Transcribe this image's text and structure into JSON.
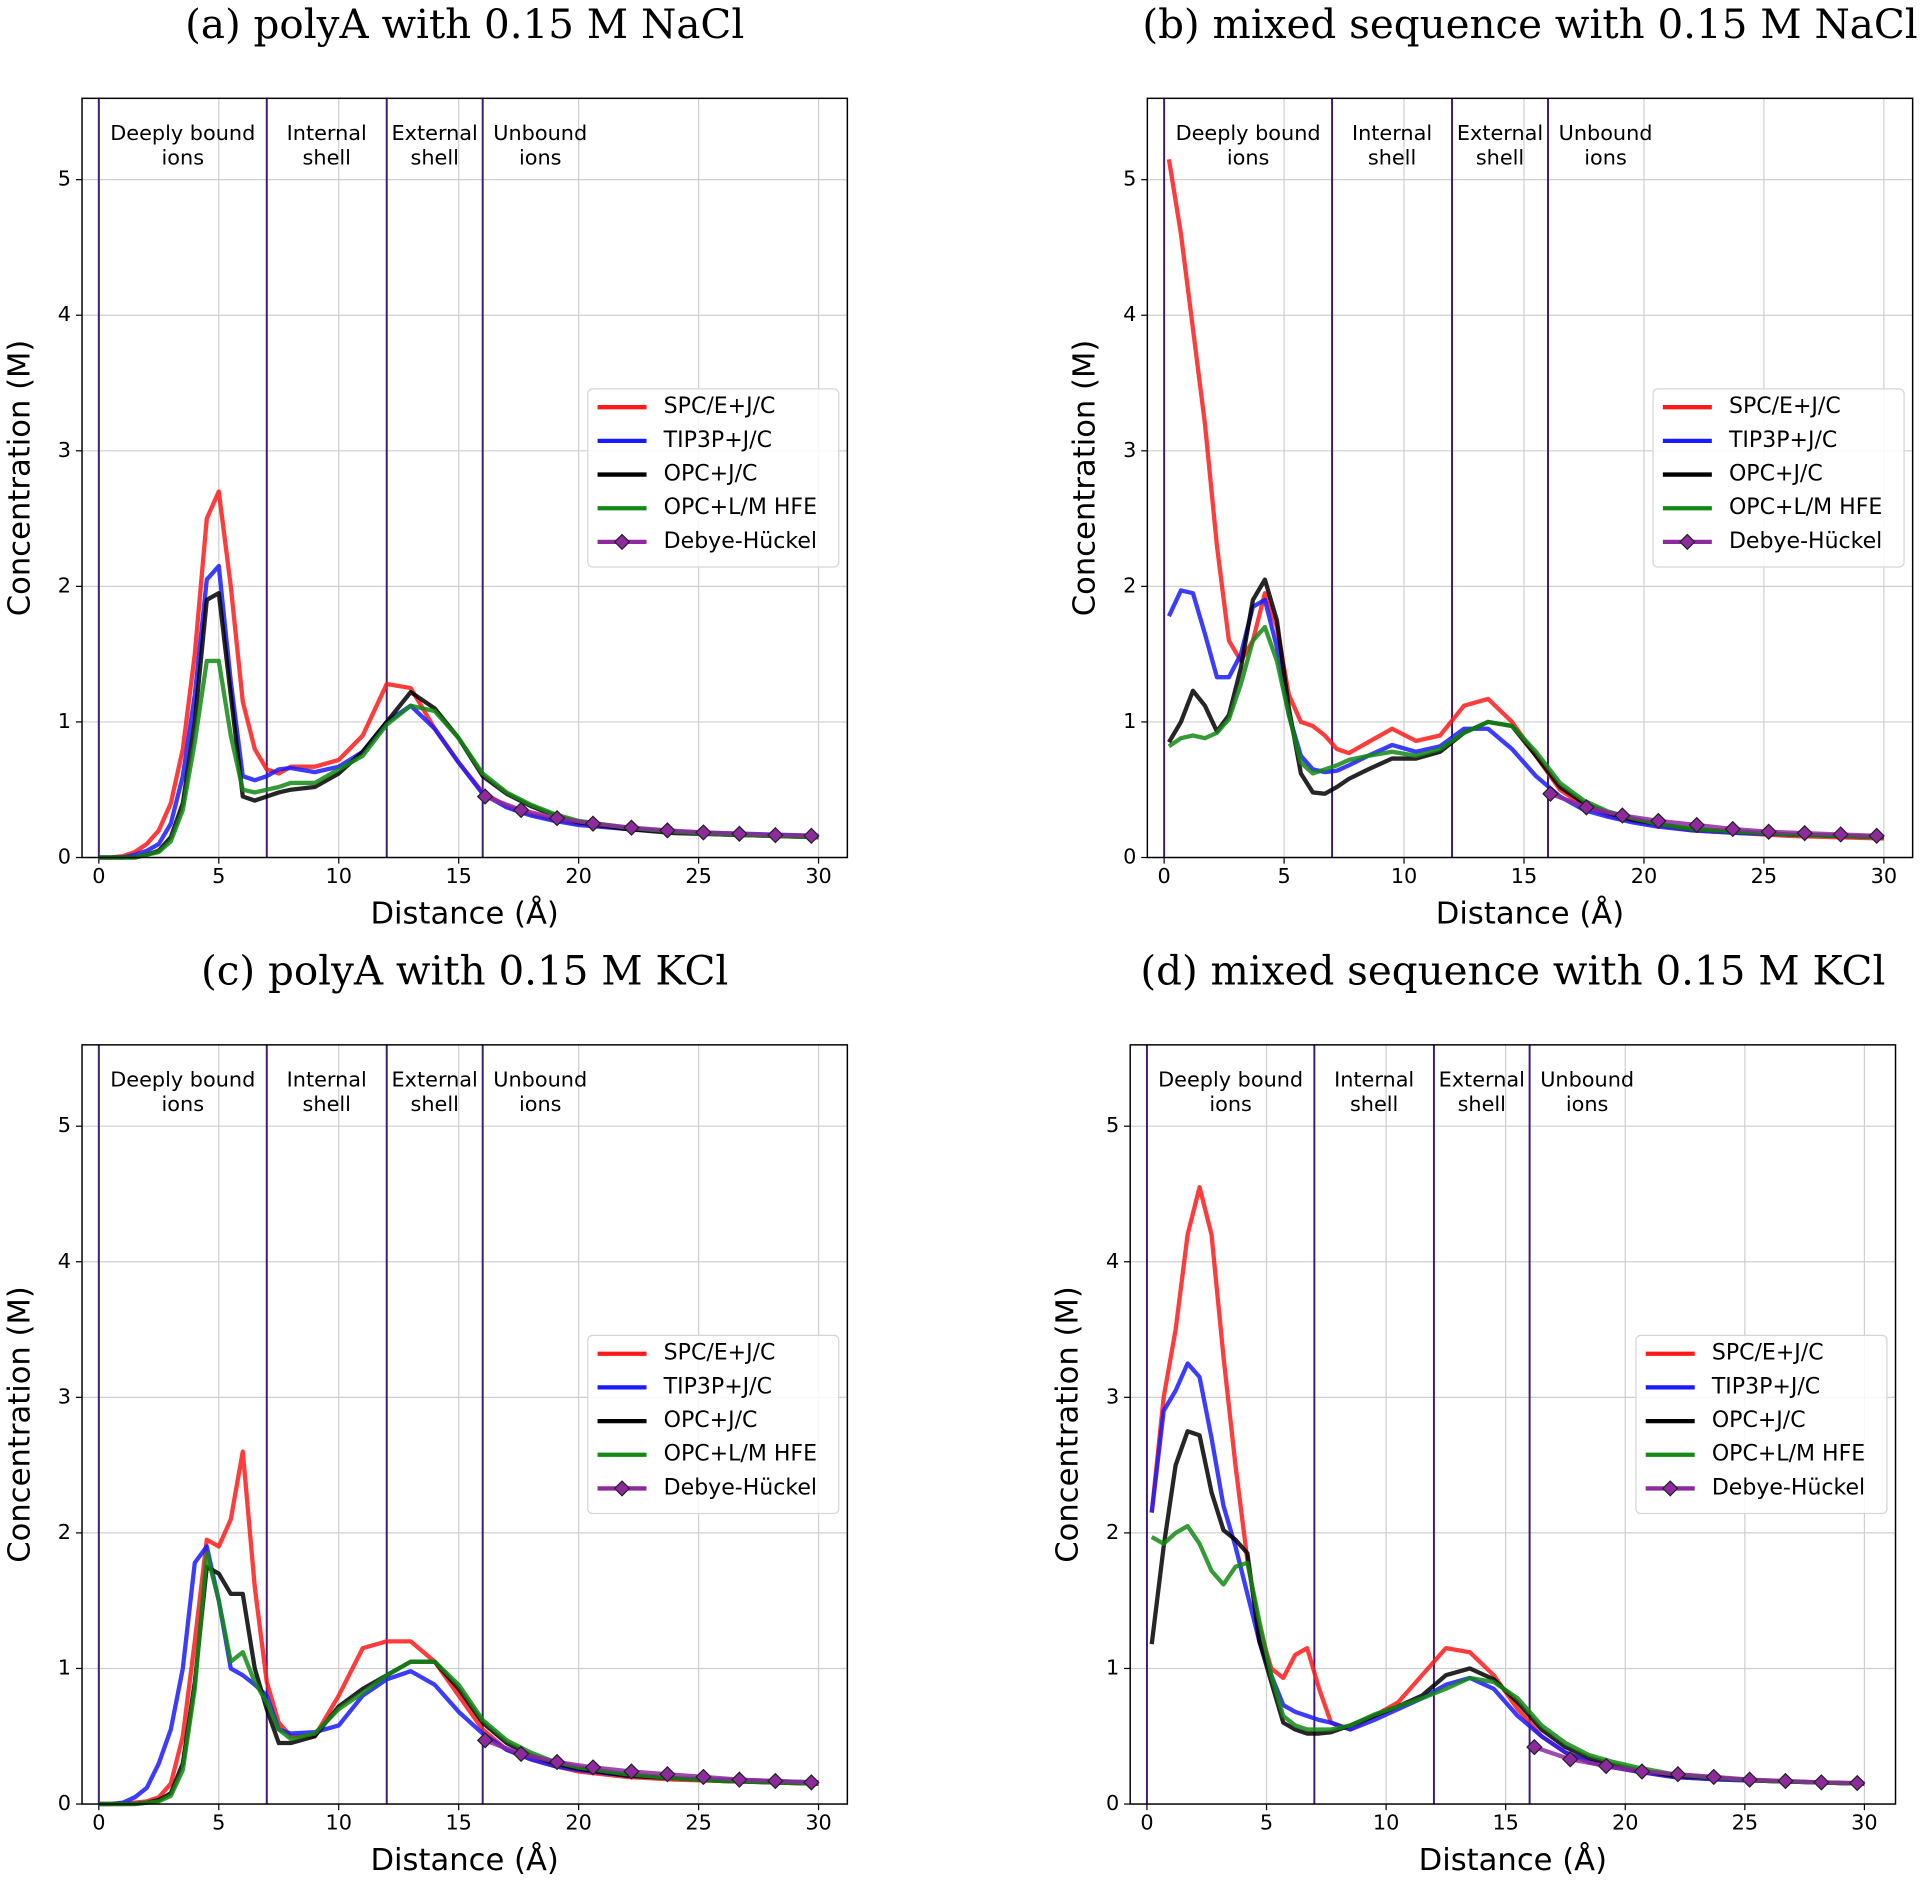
{
  "chart_data": [
    {
      "type": "line",
      "title": "(a) polyA with 0.15 M NaCl",
      "xlabel": "Distance (Å)",
      "ylabel": "Concentration (M)",
      "xlim": [
        -0.7,
        31.2
      ],
      "ylim": [
        0,
        5.6
      ],
      "xticks": [
        0,
        5,
        10,
        15,
        20,
        25,
        30
      ],
      "yticks": [
        0,
        1,
        2,
        3,
        4,
        5
      ],
      "grid": true,
      "legend": "center right",
      "boundaries": [
        0,
        7,
        12,
        16
      ],
      "boundary_color": "#3d1a78",
      "regions": [
        [
          "Deeply bound",
          "ions"
        ],
        [
          "Internal",
          "shell"
        ],
        [
          "External",
          "shell"
        ],
        [
          "Unbound",
          "ions"
        ]
      ],
      "x": [
        0,
        0.5,
        1,
        1.5,
        2,
        2.5,
        3,
        3.5,
        4,
        4.5,
        5,
        5.5,
        6,
        6.5,
        7,
        7.5,
        8,
        9,
        10,
        11,
        12,
        13,
        14,
        15,
        16,
        17,
        18,
        19,
        20,
        22,
        24,
        26,
        28,
        30
      ],
      "series": [
        {
          "name": "SPC/E+J/C",
          "color": "#ff1a1a",
          "values": [
            0,
            0,
            0.01,
            0.04,
            0.1,
            0.2,
            0.4,
            0.8,
            1.5,
            2.5,
            2.7,
            2.0,
            1.15,
            0.8,
            0.65,
            0.62,
            0.67,
            0.67,
            0.72,
            0.9,
            1.28,
            1.25,
            0.95,
            0.7,
            0.48,
            0.38,
            0.32,
            0.28,
            0.25,
            0.21,
            0.19,
            0.17,
            0.16,
            0.15
          ]
        },
        {
          "name": "TIP3P+J/C",
          "color": "#1a1aff",
          "values": [
            0,
            0,
            0,
            0.02,
            0.05,
            0.1,
            0.25,
            0.6,
            1.2,
            2.05,
            2.15,
            1.3,
            0.6,
            0.57,
            0.6,
            0.65,
            0.66,
            0.63,
            0.67,
            0.78,
            1.0,
            1.12,
            0.95,
            0.7,
            0.47,
            0.37,
            0.31,
            0.27,
            0.24,
            0.21,
            0.19,
            0.18,
            0.17,
            0.16
          ]
        },
        {
          "name": "OPC+J/C",
          "color": "#000000",
          "values": [
            0,
            0,
            0,
            0,
            0.02,
            0.05,
            0.15,
            0.4,
            1.0,
            1.9,
            1.95,
            1.2,
            0.45,
            0.42,
            0.45,
            0.48,
            0.5,
            0.52,
            0.62,
            0.78,
            1.0,
            1.22,
            1.1,
            0.88,
            0.6,
            0.47,
            0.38,
            0.31,
            0.26,
            0.21,
            0.18,
            0.17,
            0.16,
            0.15
          ]
        },
        {
          "name": "OPC+L/M HFE",
          "color": "#138a13",
          "values": [
            0,
            0,
            0,
            0,
            0.02,
            0.04,
            0.12,
            0.35,
            0.85,
            1.45,
            1.45,
            0.9,
            0.5,
            0.48,
            0.5,
            0.52,
            0.55,
            0.55,
            0.65,
            0.75,
            0.98,
            1.12,
            1.08,
            0.88,
            0.62,
            0.48,
            0.39,
            0.32,
            0.27,
            0.22,
            0.19,
            0.17,
            0.16,
            0.15
          ]
        },
        {
          "name": "Debye-Hückel",
          "color": "#8e2a9e",
          "marker": "diamond",
          "x": [
            16.1,
            17.6,
            19.1,
            20.6,
            22.2,
            23.7,
            25.2,
            26.7,
            28.2,
            29.7
          ],
          "values": [
            0.45,
            0.35,
            0.29,
            0.25,
            0.22,
            0.2,
            0.185,
            0.175,
            0.165,
            0.16
          ]
        }
      ]
    },
    {
      "type": "line",
      "title": "(b) mixed sequence with 0.15 M NaCl",
      "xlabel": "Distance (Å)",
      "ylabel": "Concentration (M)",
      "xlim": [
        -0.7,
        31.2
      ],
      "ylim": [
        0,
        5.6
      ],
      "xticks": [
        0,
        5,
        10,
        15,
        20,
        25,
        30
      ],
      "yticks": [
        0,
        1,
        2,
        3,
        4,
        5
      ],
      "grid": true,
      "legend": "center right",
      "boundaries": [
        0,
        7,
        12,
        16
      ],
      "boundary_color": "#3d1a78",
      "regions": [
        [
          "Deeply bound",
          "ions"
        ],
        [
          "Internal",
          "shell"
        ],
        [
          "External",
          "shell"
        ],
        [
          "Unbound",
          "ions"
        ]
      ],
      "x": [
        0.2,
        0.7,
        1.2,
        1.7,
        2.2,
        2.7,
        3.2,
        3.7,
        4.2,
        4.7,
        5.2,
        5.7,
        6.2,
        6.7,
        7.2,
        7.7,
        8.5,
        9.5,
        10.5,
        11.5,
        12.5,
        13.5,
        14.5,
        15.5,
        16.5,
        17.5,
        18.5,
        19.5,
        20.5,
        22,
        24,
        26,
        28,
        30
      ],
      "series": [
        {
          "name": "SPC/E+J/C",
          "color": "#ff1a1a",
          "values": [
            5.15,
            4.6,
            3.9,
            3.2,
            2.3,
            1.6,
            1.45,
            1.6,
            1.95,
            1.7,
            1.2,
            1.0,
            0.97,
            0.9,
            0.8,
            0.77,
            0.85,
            0.95,
            0.86,
            0.9,
            1.12,
            1.17,
            1.0,
            0.75,
            0.5,
            0.38,
            0.31,
            0.27,
            0.24,
            0.2,
            0.18,
            0.16,
            0.15,
            0.14
          ]
        },
        {
          "name": "TIP3P+J/C",
          "color": "#1a1aff",
          "values": [
            1.78,
            1.97,
            1.95,
            1.65,
            1.33,
            1.33,
            1.5,
            1.85,
            1.9,
            1.55,
            1.05,
            0.75,
            0.65,
            0.63,
            0.64,
            0.68,
            0.75,
            0.83,
            0.78,
            0.82,
            0.95,
            0.95,
            0.8,
            0.6,
            0.45,
            0.35,
            0.3,
            0.26,
            0.23,
            0.2,
            0.18,
            0.17,
            0.16,
            0.15
          ]
        },
        {
          "name": "OPC+J/C",
          "color": "#000000",
          "values": [
            0.85,
            1.0,
            1.23,
            1.12,
            0.93,
            1.05,
            1.4,
            1.9,
            2.05,
            1.75,
            1.1,
            0.62,
            0.48,
            0.47,
            0.52,
            0.58,
            0.65,
            0.73,
            0.73,
            0.78,
            0.92,
            1.0,
            0.97,
            0.75,
            0.52,
            0.4,
            0.33,
            0.28,
            0.25,
            0.21,
            0.19,
            0.17,
            0.16,
            0.15
          ]
        },
        {
          "name": "OPC+L/M HFE",
          "color": "#138a13",
          "values": [
            0.82,
            0.88,
            0.9,
            0.88,
            0.92,
            1.02,
            1.28,
            1.6,
            1.7,
            1.45,
            1.05,
            0.7,
            0.62,
            0.65,
            0.68,
            0.72,
            0.75,
            0.78,
            0.75,
            0.8,
            0.92,
            1.0,
            0.97,
            0.78,
            0.55,
            0.42,
            0.34,
            0.29,
            0.25,
            0.21,
            0.19,
            0.17,
            0.16,
            0.15
          ]
        },
        {
          "name": "Debye-Hückel",
          "color": "#8e2a9e",
          "marker": "diamond",
          "x": [
            16.1,
            17.6,
            19.1,
            20.6,
            22.2,
            23.7,
            25.2,
            26.7,
            28.2,
            29.7
          ],
          "values": [
            0.47,
            0.37,
            0.31,
            0.27,
            0.24,
            0.21,
            0.19,
            0.18,
            0.17,
            0.16
          ]
        }
      ]
    },
    {
      "type": "line",
      "title": "(c) polyA with 0.15 M KCl",
      "xlabel": "Distance (Å)",
      "ylabel": "Concentration (M)",
      "xlim": [
        -0.7,
        31.2
      ],
      "ylim": [
        0,
        5.6
      ],
      "xticks": [
        0,
        5,
        10,
        15,
        20,
        25,
        30
      ],
      "yticks": [
        0,
        1,
        2,
        3,
        4,
        5
      ],
      "grid": true,
      "legend": "center right",
      "boundaries": [
        0,
        7,
        12,
        16
      ],
      "boundary_color": "#3d1a78",
      "regions": [
        [
          "Deeply bound",
          "ions"
        ],
        [
          "Internal",
          "shell"
        ],
        [
          "External",
          "shell"
        ],
        [
          "Unbound",
          "ions"
        ]
      ],
      "x": [
        0,
        0.5,
        1,
        1.5,
        2,
        2.5,
        3,
        3.5,
        4,
        4.5,
        5,
        5.5,
        6,
        6.5,
        7,
        7.5,
        8,
        9,
        10,
        11,
        12,
        13,
        14,
        15,
        16,
        17,
        18,
        19,
        20,
        22,
        24,
        26,
        28,
        30
      ],
      "series": [
        {
          "name": "SPC/E+J/C",
          "color": "#ff1a1a",
          "values": [
            0,
            0,
            0,
            0.01,
            0.02,
            0.05,
            0.15,
            0.5,
            1.2,
            1.95,
            1.9,
            2.1,
            2.6,
            1.6,
            0.9,
            0.6,
            0.5,
            0.5,
            0.8,
            1.15,
            1.2,
            1.2,
            1.05,
            0.8,
            0.55,
            0.4,
            0.33,
            0.28,
            0.24,
            0.2,
            0.18,
            0.17,
            0.16,
            0.15
          ]
        },
        {
          "name": "TIP3P+J/C",
          "color": "#1a1aff",
          "values": [
            0,
            0,
            0.01,
            0.05,
            0.12,
            0.3,
            0.55,
            1.0,
            1.78,
            1.9,
            1.5,
            1.0,
            0.95,
            0.88,
            0.8,
            0.55,
            0.52,
            0.53,
            0.58,
            0.8,
            0.92,
            0.98,
            0.88,
            0.68,
            0.52,
            0.4,
            0.33,
            0.28,
            0.25,
            0.21,
            0.19,
            0.18,
            0.17,
            0.16
          ]
        },
        {
          "name": "OPC+J/C",
          "color": "#000000",
          "values": [
            0,
            0,
            0,
            0,
            0.01,
            0.03,
            0.08,
            0.3,
            0.9,
            1.75,
            1.7,
            1.55,
            1.55,
            1.0,
            0.7,
            0.45,
            0.45,
            0.5,
            0.72,
            0.85,
            0.95,
            1.05,
            1.05,
            0.85,
            0.6,
            0.45,
            0.36,
            0.3,
            0.26,
            0.21,
            0.19,
            0.17,
            0.16,
            0.15
          ]
        },
        {
          "name": "OPC+L/M HFE",
          "color": "#138a13",
          "values": [
            0,
            0,
            0,
            0,
            0.01,
            0.02,
            0.06,
            0.25,
            0.85,
            1.85,
            1.5,
            1.05,
            1.12,
            0.9,
            0.75,
            0.55,
            0.48,
            0.52,
            0.7,
            0.82,
            0.95,
            1.05,
            1.05,
            0.88,
            0.62,
            0.47,
            0.38,
            0.31,
            0.27,
            0.22,
            0.19,
            0.17,
            0.16,
            0.15
          ]
        },
        {
          "name": "Debye-Hückel",
          "color": "#8e2a9e",
          "marker": "diamond",
          "x": [
            16.1,
            17.6,
            19.1,
            20.6,
            22.2,
            23.7,
            25.2,
            26.7,
            28.2,
            29.7
          ],
          "values": [
            0.47,
            0.37,
            0.31,
            0.27,
            0.24,
            0.22,
            0.2,
            0.18,
            0.17,
            0.16
          ]
        }
      ]
    },
    {
      "type": "line",
      "title": "(d) mixed sequence with 0.15 M KCl",
      "xlabel": "Distance (Å)",
      "ylabel": "Concentration (M)",
      "xlim": [
        -0.7,
        31.3
      ],
      "ylim": [
        0,
        5.6
      ],
      "xticks": [
        0,
        5,
        10,
        15,
        20,
        25,
        30
      ],
      "yticks": [
        0,
        1,
        2,
        3,
        4,
        5
      ],
      "grid": true,
      "legend": "center right",
      "boundaries": [
        0,
        7,
        12,
        16
      ],
      "boundary_color": "#3d1a78",
      "regions": [
        [
          "Deeply bound",
          "ions"
        ],
        [
          "Internal",
          "shell"
        ],
        [
          "External",
          "shell"
        ],
        [
          "Unbound",
          "ions"
        ]
      ],
      "x": [
        0.2,
        0.7,
        1.2,
        1.7,
        2.2,
        2.7,
        3.2,
        3.7,
        4.2,
        4.7,
        5.2,
        5.7,
        6.2,
        6.7,
        7.2,
        7.7,
        8.5,
        9.5,
        10.5,
        11.5,
        12.5,
        13.5,
        14.5,
        15.5,
        16.5,
        17.5,
        18.5,
        19.5,
        20.5,
        22,
        24,
        26,
        28,
        30
      ],
      "series": [
        {
          "name": "SPC/E+J/C",
          "color": "#ff1a1a",
          "values": [
            2.15,
            3.0,
            3.5,
            4.2,
            4.55,
            4.2,
            3.3,
            2.5,
            1.8,
            1.3,
            1.0,
            0.93,
            1.1,
            1.15,
            0.85,
            0.6,
            0.55,
            0.65,
            0.75,
            0.95,
            1.15,
            1.12,
            0.95,
            0.7,
            0.5,
            0.38,
            0.31,
            0.27,
            0.24,
            0.2,
            0.18,
            0.17,
            0.16,
            0.15
          ]
        },
        {
          "name": "TIP3P+J/C",
          "color": "#1a1aff",
          "values": [
            2.15,
            2.9,
            3.05,
            3.25,
            3.15,
            2.7,
            2.2,
            1.9,
            1.55,
            1.2,
            0.95,
            0.73,
            0.68,
            0.65,
            0.62,
            0.6,
            0.55,
            0.62,
            0.7,
            0.78,
            0.88,
            0.93,
            0.85,
            0.65,
            0.5,
            0.38,
            0.31,
            0.27,
            0.24,
            0.2,
            0.18,
            0.17,
            0.16,
            0.15
          ]
        },
        {
          "name": "OPC+J/C",
          "color": "#000000",
          "values": [
            1.18,
            1.9,
            2.5,
            2.75,
            2.72,
            2.3,
            2.02,
            1.95,
            1.85,
            1.2,
            0.9,
            0.6,
            0.55,
            0.52,
            0.52,
            0.53,
            0.58,
            0.65,
            0.72,
            0.8,
            0.95,
            1.0,
            0.92,
            0.75,
            0.55,
            0.42,
            0.34,
            0.29,
            0.25,
            0.21,
            0.19,
            0.17,
            0.16,
            0.15
          ]
        },
        {
          "name": "OPC+L/M HFE",
          "color": "#138a13",
          "values": [
            1.97,
            1.92,
            2.0,
            2.05,
            1.92,
            1.72,
            1.62,
            1.75,
            1.78,
            1.35,
            0.95,
            0.65,
            0.58,
            0.55,
            0.55,
            0.55,
            0.58,
            0.66,
            0.72,
            0.78,
            0.85,
            0.93,
            0.9,
            0.78,
            0.58,
            0.45,
            0.36,
            0.31,
            0.27,
            0.22,
            0.19,
            0.17,
            0.16,
            0.15
          ]
        },
        {
          "name": "Debye-Hückel",
          "color": "#8e2a9e",
          "marker": "diamond",
          "x": [
            16.2,
            17.7,
            19.2,
            20.7,
            22.2,
            23.7,
            25.2,
            26.7,
            28.2,
            29.7
          ],
          "values": [
            0.42,
            0.33,
            0.28,
            0.24,
            0.22,
            0.2,
            0.18,
            0.17,
            0.16,
            0.155
          ]
        }
      ]
    }
  ]
}
